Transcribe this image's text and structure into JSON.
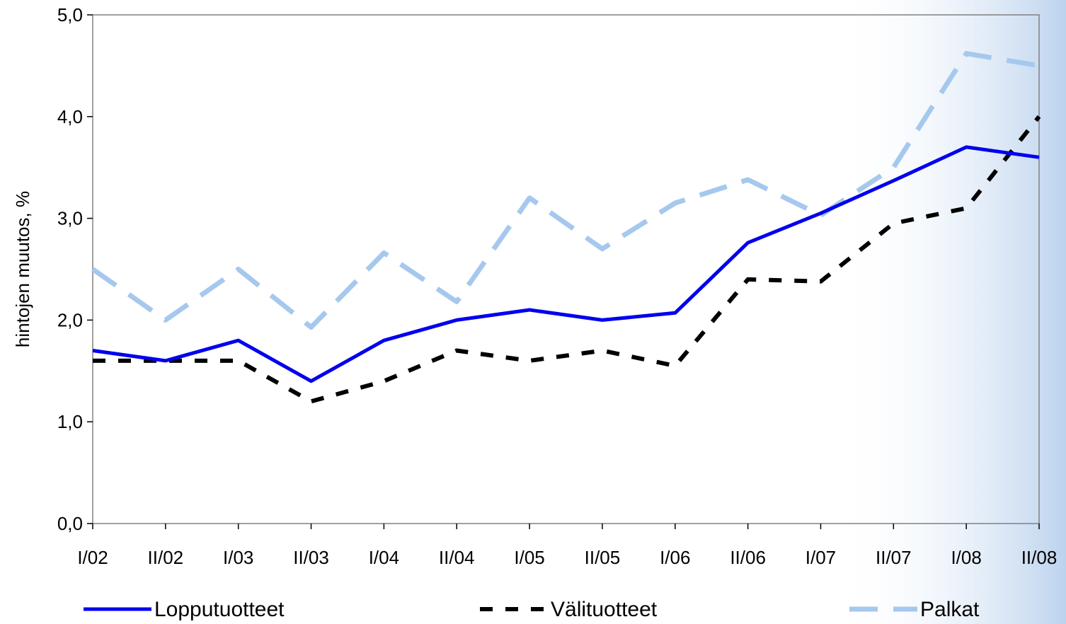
{
  "chart_data": {
    "type": "line",
    "title": "",
    "xlabel": "",
    "ylabel": "hintojen muutos, %",
    "ylim": [
      0,
      5
    ],
    "yticks": [
      "0,0",
      "1,0",
      "2,0",
      "3,0",
      "4,0",
      "5,0"
    ],
    "categories": [
      "I/02",
      "II/02",
      "I/03",
      "II/03",
      "I/04",
      "II/04",
      "I/05",
      "II/05",
      "I/06",
      "II/06",
      "I/07",
      "II/07",
      "I/08",
      "II/08"
    ],
    "grid": false,
    "legend_position": "bottom",
    "series": [
      {
        "name": "Lopputuotteet",
        "color": "#0000ee",
        "style": "solid",
        "values": [
          1.7,
          1.6,
          1.8,
          1.4,
          1.8,
          2.0,
          2.1,
          2.0,
          2.07,
          2.76,
          3.05,
          3.37,
          3.7,
          3.6
        ]
      },
      {
        "name": "Välituotteet",
        "color": "#000000",
        "style": "dashed",
        "values": [
          1.6,
          1.6,
          1.6,
          1.2,
          1.4,
          1.7,
          1.6,
          1.7,
          1.55,
          2.4,
          2.38,
          2.95,
          3.1,
          4.0
        ]
      },
      {
        "name": "Palkat",
        "color": "#a6c8ee",
        "style": "dashed",
        "values": [
          2.5,
          2.0,
          2.5,
          1.93,
          2.66,
          2.18,
          3.2,
          2.7,
          3.15,
          3.38,
          3.03,
          3.5,
          4.62,
          4.5
        ]
      }
    ]
  }
}
